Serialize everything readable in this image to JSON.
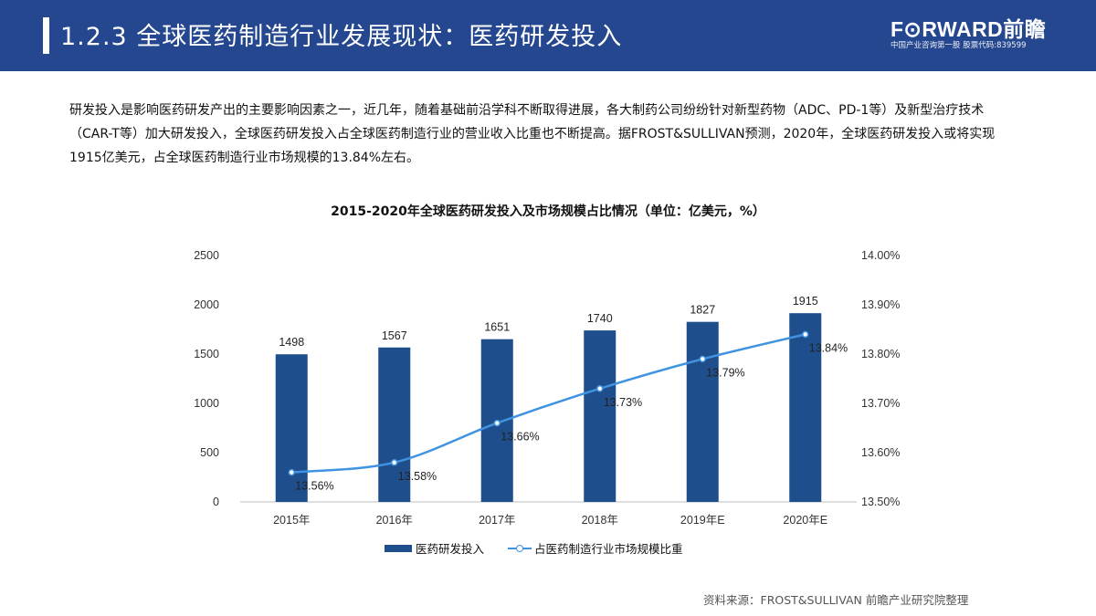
{
  "header": {
    "title": "1.2.3 全球医药制造行业发展现状：医药研发投入",
    "brand_name": "F⊙RWARD前瞻",
    "brand_sub": "中国产业咨询第一股 股票代码:839599"
  },
  "intro": "研发投入是影响医药研发产出的主要影响因素之一，近几年，随着基础前沿学科不断取得进展，各大制药公司纷纷针对新型药物（ADC、PD-1等）及新型治疗技术（CAR-T等）加大研发投入，全球医药研发投入占全球医药制造行业的营业收入比重也不断提高。据FROST&SULLIVAN预测，2020年，全球医药研发投入或将实现1915亿美元，占全球医药制造行业市场规模的13.84%左右。",
  "source": "资料来源：FROST&SULLIVAN 前瞻产业研究院整理",
  "colors": {
    "header": "#24478f",
    "bar": "#1f4e8c",
    "line": "#3f93e0"
  },
  "chart_data": {
    "type": "bar",
    "title": "2015-2020年全球医药研发投入及市场规模占比情况（单位：亿美元，%）",
    "categories": [
      "2015年",
      "2016年",
      "2017年",
      "2018年",
      "2019年E",
      "2020年E"
    ],
    "series": [
      {
        "name": "医药研发投入",
        "type": "bar",
        "axis": "left",
        "values": [
          1498,
          1567,
          1651,
          1740,
          1827,
          1915
        ],
        "labels": [
          "1498",
          "1567",
          "1651",
          "1740",
          "1827",
          "1915"
        ]
      },
      {
        "name": "占医药制造行业市场规模比重",
        "type": "line",
        "axis": "right",
        "values": [
          13.56,
          13.58,
          13.66,
          13.73,
          13.79,
          13.84
        ],
        "labels": [
          "13.56%",
          "13.58%",
          "13.66%",
          "13.73%",
          "13.79%",
          "13.84%"
        ]
      }
    ],
    "y_left": {
      "min": 0,
      "max": 2500,
      "ticks": [
        "0",
        "500",
        "1000",
        "1500",
        "2000",
        "2500"
      ]
    },
    "y_right": {
      "min": 13.5,
      "max": 14.0,
      "ticks": [
        "13.50%",
        "13.60%",
        "13.70%",
        "13.80%",
        "13.90%",
        "14.00%"
      ]
    },
    "legend_position": "bottom",
    "grid": false
  }
}
